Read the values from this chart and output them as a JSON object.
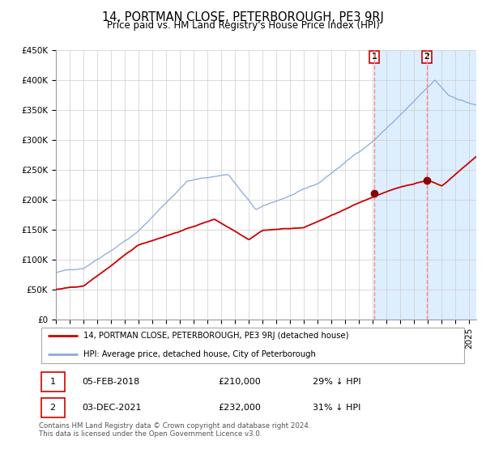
{
  "title": "14, PORTMAN CLOSE, PETERBOROUGH, PE3 9RJ",
  "subtitle": "Price paid vs. HM Land Registry's House Price Index (HPI)",
  "ylabel_ticks": [
    "£0",
    "£50K",
    "£100K",
    "£150K",
    "£200K",
    "£250K",
    "£300K",
    "£350K",
    "£400K",
    "£450K"
  ],
  "ylim": [
    0,
    450000
  ],
  "xlim_start": 1995.0,
  "xlim_end": 2025.5,
  "transaction1": {
    "date": "05-FEB-2018",
    "price": 210000,
    "label": "1",
    "x": 2018.09
  },
  "transaction2": {
    "date": "03-DEC-2021",
    "price": 232000,
    "label": "2",
    "x": 2021.92
  },
  "legend1": "14, PORTMAN CLOSE, PETERBOROUGH, PE3 9RJ (detached house)",
  "legend2": "HPI: Average price, detached house, City of Peterborough",
  "footer": "Contains HM Land Registry data © Crown copyright and database right 2024.\nThis data is licensed under the Open Government Licence v3.0.",
  "table_row1": [
    "1",
    "05-FEB-2018",
    "£210,000",
    "29% ↓ HPI"
  ],
  "table_row2": [
    "2",
    "03-DEC-2021",
    "£232,000",
    "31% ↓ HPI"
  ],
  "hpi_color": "#88aadd",
  "price_color": "#cc0000",
  "bg_shade_color": "#ddeeff",
  "marker_color": "#8b0000",
  "dashed_line_color": "#ff8888",
  "grid_color": "#cccccc",
  "title_fontsize": 10.5,
  "subtitle_fontsize": 8.5,
  "tick_fontsize": 7.5
}
